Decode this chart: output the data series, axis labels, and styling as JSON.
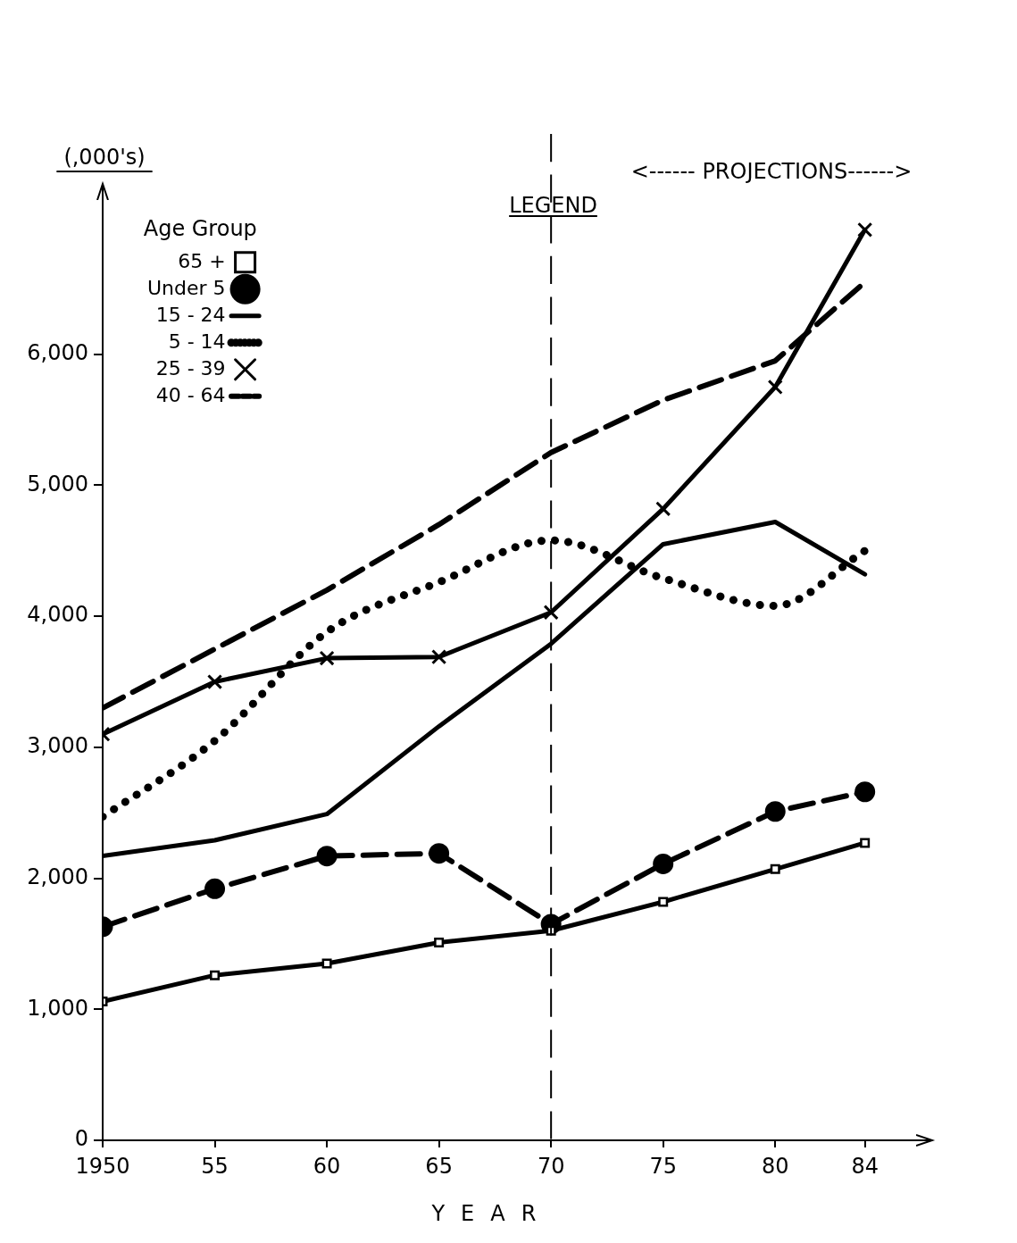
{
  "chart_data": {
    "type": "line",
    "xlabel": "YEAR",
    "ylabel": "(,000's)",
    "legend_title": "Age Group",
    "legend": "top left",
    "grid": false,
    "x": [
      1950,
      1955,
      1960,
      1965,
      1970,
      1975,
      1980,
      1984
    ],
    "xlim": [
      1950,
      1987
    ],
    "xticks": [
      {
        "value": 1950,
        "label": "1950"
      },
      {
        "value": 1955,
        "label": "55"
      },
      {
        "value": 1960,
        "label": "60"
      },
      {
        "value": 1965,
        "label": "65"
      },
      {
        "value": 1970,
        "label": "70"
      },
      {
        "value": 1975,
        "label": "75"
      },
      {
        "value": 1980,
        "label": "80"
      },
      {
        "value": 1984,
        "label": "84"
      }
    ],
    "ylim": [
      0,
      7300
    ],
    "yticks": [
      {
        "value": 0,
        "label": "0"
      },
      {
        "value": 1000,
        "label": "1,000"
      },
      {
        "value": 2000,
        "label": "2,000"
      },
      {
        "value": 3000,
        "label": "3,000"
      },
      {
        "value": 4000,
        "label": "4,000"
      },
      {
        "value": 5000,
        "label": "5,000"
      },
      {
        "value": 6000,
        "label": "6,000"
      }
    ],
    "series": [
      {
        "name": "40 - 64",
        "color": "#000000",
        "line_style": "dashed",
        "marker": "none",
        "values": [
          3300,
          3750,
          4200,
          4700,
          5250,
          5650,
          5950,
          6550
        ]
      },
      {
        "name": "25 - 39",
        "color": "#000000",
        "line_style": "solid",
        "marker": "cross",
        "values": [
          3100,
          3500,
          3680,
          3690,
          4030,
          4820,
          5750,
          6950
        ]
      },
      {
        "name": "5 - 14",
        "color": "#000000",
        "line_style": "dotted",
        "marker": "none",
        "values": [
          2470,
          3050,
          3880,
          4260,
          4580,
          4290,
          4080,
          4500
        ]
      },
      {
        "name": "15 - 24",
        "color": "#000000",
        "line_style": "solid",
        "marker": "none",
        "values": [
          2170,
          2290,
          2490,
          3160,
          3790,
          4550,
          4720,
          4320
        ]
      },
      {
        "name": "Under 5",
        "color": "#000000",
        "line_style": "dashed",
        "marker": "circle",
        "values": [
          1630,
          1920,
          2170,
          2190,
          1650,
          2110,
          2510,
          2660
        ]
      },
      {
        "name": "65 +",
        "color": "#000000",
        "line_style": "solid",
        "marker": "square",
        "values": [
          1060,
          1260,
          1350,
          1510,
          1600,
          1820,
          2070,
          2270
        ]
      }
    ],
    "ref_lines": [
      {
        "axis": "x",
        "value": 1970,
        "line_style": "dashed",
        "color": "#000000"
      }
    ],
    "annotations": [
      "<------ PROJECTIONS------>",
      "LEGEND"
    ]
  }
}
